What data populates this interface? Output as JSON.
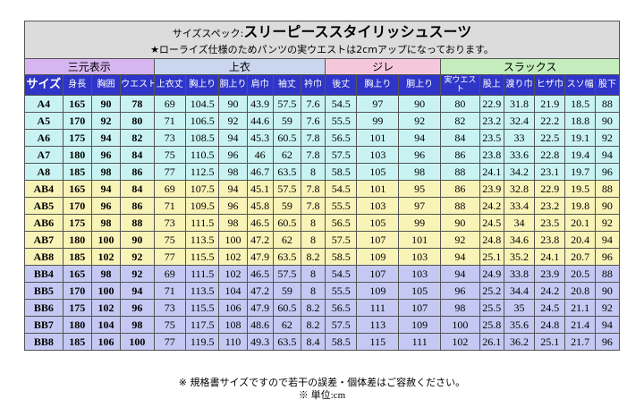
{
  "title": {
    "prefix": "サイズスペック:",
    "main": "スリーピーススタイリッシュスーツ",
    "note": "★ローライズ仕様のためパンツの実ウエストは2cmアップになっております。"
  },
  "groups": {
    "sanmoto": "三元表示",
    "uwagi": "上衣",
    "jire": "ジレ",
    "slacks": "スラックス"
  },
  "headers": [
    "サイズ",
    "身長",
    "胸囲",
    "ウエスト",
    "上衣丈",
    "胸上り",
    "胴上り",
    "肩巾",
    "袖丈",
    "衿巾",
    "後丈",
    "胸上り",
    "胴上り",
    "実ウエスト",
    "股上",
    "渡り巾",
    "ヒザ巾",
    "スソ幅",
    "股下"
  ],
  "colors": {
    "group_sanmoto": "#d7b5f0",
    "group_uwagi": "#c9d6ee",
    "group_jire": "#f4c8da",
    "group_slacks": "#c4ecbc",
    "header_bg": "#2e35c8",
    "band_a": "#c9f3f3",
    "band_b": "#f8f3b6",
    "band_c": "#c4c8f2"
  },
  "rows": [
    {
      "band": "a",
      "cells": [
        "A4",
        "165",
        "90",
        "78",
        "69",
        "104.5",
        "90",
        "43.9",
        "57.5",
        "7.6",
        "54.5",
        "97",
        "90",
        "80",
        "22.9",
        "31.8",
        "21.9",
        "18.5",
        "88"
      ]
    },
    {
      "band": "a",
      "cells": [
        "A5",
        "170",
        "92",
        "80",
        "71",
        "106.5",
        "92",
        "44.6",
        "59",
        "7.6",
        "55.5",
        "99",
        "92",
        "82",
        "23.2",
        "32.4",
        "22.2",
        "18.8",
        "90"
      ]
    },
    {
      "band": "a",
      "cells": [
        "A6",
        "175",
        "94",
        "82",
        "73",
        "108.5",
        "94",
        "45.3",
        "60.5",
        "7.8",
        "56.5",
        "101",
        "94",
        "84",
        "23.5",
        "33",
        "22.5",
        "19.1",
        "92"
      ]
    },
    {
      "band": "a",
      "cells": [
        "A7",
        "180",
        "96",
        "84",
        "75",
        "110.5",
        "96",
        "46",
        "62",
        "7.8",
        "57.5",
        "103",
        "96",
        "86",
        "23.8",
        "33.6",
        "22.8",
        "19.4",
        "94"
      ]
    },
    {
      "band": "a",
      "cells": [
        "A8",
        "185",
        "98",
        "86",
        "77",
        "112.5",
        "98",
        "46.7",
        "63.5",
        "8",
        "58.5",
        "105",
        "98",
        "88",
        "24.1",
        "34.2",
        "23.1",
        "19.7",
        "96"
      ]
    },
    {
      "band": "b",
      "cells": [
        "AB4",
        "165",
        "94",
        "84",
        "69",
        "107.5",
        "94",
        "45.1",
        "57.5",
        "7.8",
        "54.5",
        "101",
        "95",
        "86",
        "23.9",
        "32.8",
        "22.9",
        "19.5",
        "88"
      ]
    },
    {
      "band": "b",
      "cells": [
        "AB5",
        "170",
        "96",
        "86",
        "71",
        "109.5",
        "96",
        "45.8",
        "59",
        "7.8",
        "55.5",
        "103",
        "97",
        "88",
        "24.2",
        "33.4",
        "23.2",
        "19.8",
        "90"
      ]
    },
    {
      "band": "b",
      "cells": [
        "AB6",
        "175",
        "98",
        "88",
        "73",
        "111.5",
        "98",
        "46.5",
        "60.5",
        "8",
        "56.5",
        "105",
        "99",
        "90",
        "24.5",
        "34",
        "23.5",
        "20.1",
        "92"
      ]
    },
    {
      "band": "b",
      "cells": [
        "AB7",
        "180",
        "100",
        "90",
        "75",
        "113.5",
        "100",
        "47.2",
        "62",
        "8",
        "57.5",
        "107",
        "101",
        "92",
        "24.8",
        "34.6",
        "23.8",
        "20.4",
        "94"
      ]
    },
    {
      "band": "b",
      "cells": [
        "AB8",
        "185",
        "102",
        "92",
        "77",
        "115.5",
        "102",
        "47.9",
        "63.5",
        "8.2",
        "58.5",
        "109",
        "103",
        "94",
        "25.1",
        "35.2",
        "24.1",
        "20.7",
        "96"
      ]
    },
    {
      "band": "c",
      "cells": [
        "BB4",
        "165",
        "98",
        "92",
        "69",
        "111.5",
        "102",
        "46.5",
        "57.5",
        "8",
        "54.5",
        "107",
        "103",
        "94",
        "24.9",
        "33.8",
        "23.9",
        "20.5",
        "88"
      ]
    },
    {
      "band": "c",
      "cells": [
        "BB5",
        "170",
        "100",
        "94",
        "71",
        "113.5",
        "104",
        "47.2",
        "59",
        "8",
        "55.5",
        "109",
        "105",
        "96",
        "25.2",
        "34.4",
        "24.2",
        "20.8",
        "90"
      ]
    },
    {
      "band": "c",
      "cells": [
        "BB6",
        "175",
        "102",
        "96",
        "73",
        "115.5",
        "106",
        "47.9",
        "60.5",
        "8.2",
        "56.5",
        "111",
        "107",
        "98",
        "25.5",
        "35",
        "24.5",
        "21.1",
        "92"
      ]
    },
    {
      "band": "c",
      "cells": [
        "BB7",
        "180",
        "104",
        "98",
        "75",
        "117.5",
        "108",
        "48.6",
        "62",
        "8.2",
        "57.5",
        "113",
        "109",
        "100",
        "25.8",
        "35.6",
        "24.8",
        "21.4",
        "94"
      ]
    },
    {
      "band": "c",
      "cells": [
        "BB8",
        "185",
        "106",
        "100",
        "77",
        "119.5",
        "110",
        "49.3",
        "63.5",
        "8.4",
        "58.5",
        "115",
        "111",
        "102",
        "26.1",
        "36.2",
        "25.1",
        "21.7",
        "96"
      ]
    }
  ],
  "footer": {
    "disclaimer": "※ 規格書サイズですので若干の誤差・個体差はご容赦ください。",
    "unit": "※ 単位:cm"
  }
}
